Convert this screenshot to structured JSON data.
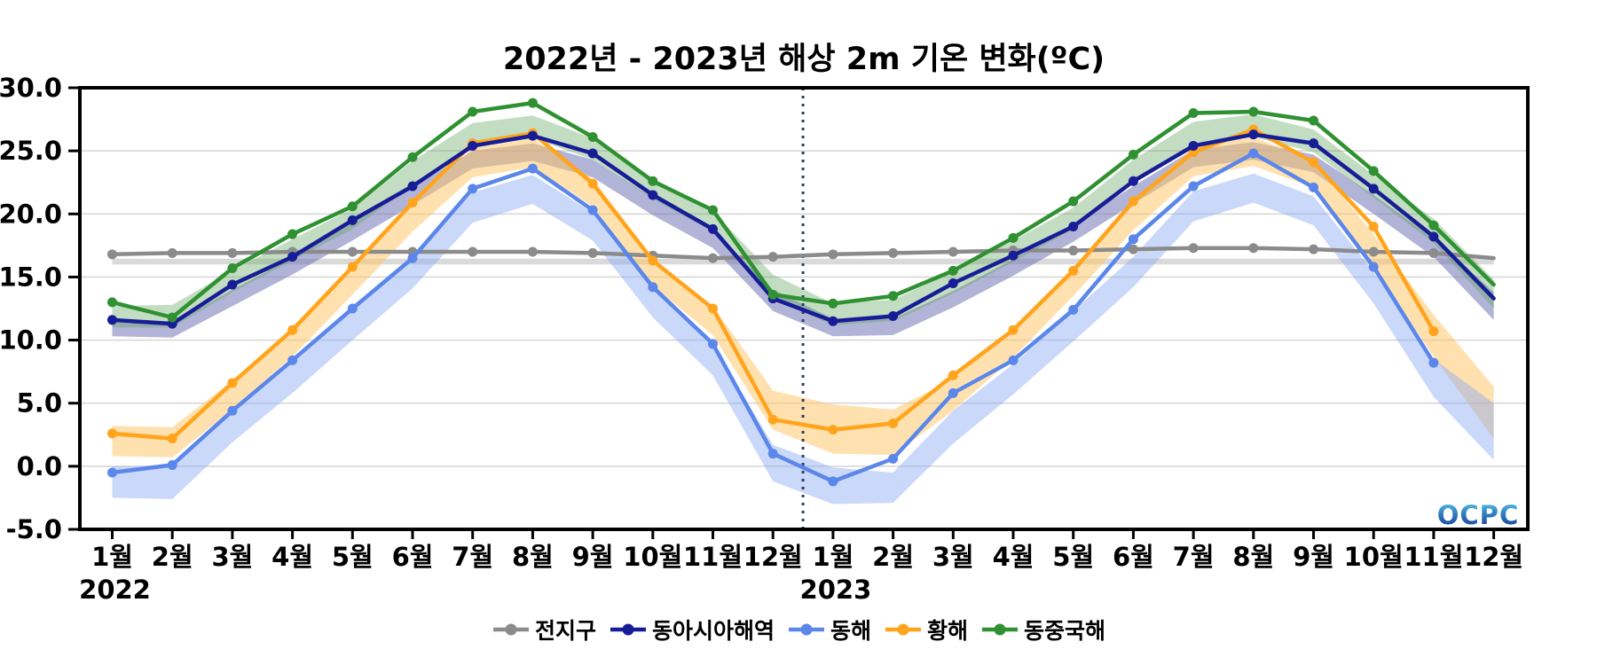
{
  "title": "2022년 - 2023년 해상 2m 기온 변화(ºC)",
  "watermark": "OCPC",
  "axis": {
    "y_tick_labels": [
      "30.0",
      "25.0",
      "20.0",
      "15.0",
      "10.0",
      "5.0",
      "0.0",
      "-5.0"
    ],
    "y_min": -5,
    "y_max": 30,
    "y_step": 5,
    "months": [
      "1월",
      "2월",
      "3월",
      "4월",
      "5월",
      "6월",
      "7월",
      "8월",
      "9월",
      "10월",
      "11월",
      "12월",
      "1월",
      "2월",
      "3월",
      "4월",
      "5월",
      "6월",
      "7월",
      "8월",
      "9월",
      "10월",
      "11월",
      "12월"
    ],
    "year_labels": [
      {
        "text": "2022",
        "month_index": 0
      },
      {
        "text": "2023",
        "month_index": 12
      }
    ],
    "divider_between": [
      11,
      12
    ]
  },
  "colors": {
    "grid": "#d8d8d8",
    "frame": "#000000",
    "divider": "#2c3e5d",
    "watermark_top": "#5ec9e6",
    "watermark_mid": "#2e7fc2",
    "watermark_bottom": "#16368f"
  },
  "chart_data": {
    "type": "line",
    "title": "2022년 - 2023년 해상 2m 기온 변화(ºC)",
    "ylim": [
      -5,
      30
    ],
    "grid": true,
    "legend_position": "bottom",
    "x_years": [
      "2022",
      "2023"
    ],
    "categories": [
      "1월",
      "2월",
      "3월",
      "4월",
      "5월",
      "6월",
      "7월",
      "8월",
      "9월",
      "10월",
      "11월",
      "12월",
      "1월",
      "2월",
      "3월",
      "4월",
      "5월",
      "6월",
      "7월",
      "8월",
      "9월",
      "10월",
      "11월",
      "12월"
    ],
    "series": [
      {
        "key": "global",
        "name": "전지구",
        "color": "#8b8b8b",
        "band_color": "rgba(205,205,205,0.75)",
        "values": [
          16.8,
          16.9,
          16.9,
          17.0,
          17.0,
          17.0,
          17.0,
          17.0,
          16.9,
          16.7,
          16.5,
          16.6,
          16.8,
          16.9,
          17.0,
          17.1,
          17.1,
          17.2,
          17.3,
          17.3,
          17.2,
          17.0,
          16.9,
          16.5
        ],
        "band_lower": [
          16.0,
          16.0,
          16.0,
          16.0,
          16.0,
          16.0,
          16.0,
          16.0,
          16.0,
          16.0,
          16.0,
          16.0,
          16.0,
          16.0,
          16.0,
          16.0,
          16.0,
          16.0,
          16.0,
          16.0,
          16.0,
          16.0,
          16.0,
          16.0
        ],
        "band_upper": [
          16.45,
          16.45,
          16.45,
          16.45,
          16.45,
          16.45,
          16.45,
          16.45,
          16.45,
          16.45,
          16.45,
          16.45,
          16.45,
          16.45,
          16.45,
          16.45,
          16.45,
          16.45,
          16.45,
          16.45,
          16.45,
          16.45,
          16.45,
          16.45
        ]
      },
      {
        "key": "east-asia",
        "name": "동아시아해역",
        "color": "#171d96",
        "band_color": "rgba(115,118,182,0.55)",
        "values": [
          11.6,
          11.3,
          14.4,
          16.6,
          19.5,
          22.2,
          25.4,
          26.2,
          24.8,
          21.5,
          18.8,
          13.3,
          11.5,
          11.9,
          14.5,
          16.7,
          19.0,
          22.6,
          25.4,
          26.3,
          25.6,
          22.0,
          18.2,
          13.3
        ],
        "band_lower": [
          10.3,
          10.2,
          12.7,
          15.2,
          17.9,
          20.7,
          23.6,
          24.2,
          22.9,
          19.9,
          17.3,
          12.3,
          10.3,
          10.4,
          12.6,
          15.1,
          17.8,
          20.8,
          23.7,
          24.3,
          23.3,
          20.0,
          16.6,
          11.6
        ],
        "band_upper": [
          11.4,
          11.3,
          14.0,
          16.5,
          19.3,
          22.1,
          25.0,
          25.6,
          24.3,
          21.3,
          18.7,
          14.0,
          11.7,
          11.7,
          13.9,
          16.4,
          19.2,
          22.2,
          25.1,
          25.7,
          24.7,
          21.5,
          18.1,
          13.8
        ]
      },
      {
        "key": "east-sea",
        "name": "동해",
        "color": "#5b87ea",
        "band_color": "rgba(138,168,242,0.45)",
        "values": [
          -0.5,
          0.1,
          4.4,
          8.4,
          12.5,
          16.5,
          22.0,
          23.6,
          20.3,
          14.2,
          9.7,
          1.0,
          -1.2,
          0.6,
          5.8,
          8.4,
          12.4,
          18.0,
          22.2,
          24.8,
          22.1,
          15.8,
          8.2,
          null
        ],
        "band_lower": [
          -2.5,
          -2.6,
          1.9,
          5.8,
          10.0,
          14.1,
          19.3,
          20.8,
          17.9,
          11.8,
          7.2,
          -1.2,
          -3.0,
          -2.9,
          1.8,
          5.7,
          9.9,
          14.2,
          19.4,
          20.9,
          19.1,
          12.9,
          5.5,
          0.5
        ],
        "band_upper": [
          0.0,
          -0.1,
          4.3,
          8.2,
          12.4,
          16.5,
          21.7,
          23.1,
          20.1,
          14.1,
          9.7,
          1.7,
          -0.1,
          -0.5,
          4.4,
          8.1,
          12.3,
          16.6,
          21.8,
          23.2,
          21.4,
          15.4,
          8.5,
          5.0
        ]
      },
      {
        "key": "yellow-sea",
        "name": "황해",
        "color": "#ffa41c",
        "band_color": "rgba(255,196,95,0.5)",
        "values": [
          2.6,
          2.2,
          6.6,
          10.8,
          15.8,
          20.9,
          25.6,
          26.4,
          22.4,
          16.3,
          12.5,
          3.7,
          2.9,
          3.4,
          7.2,
          10.8,
          15.5,
          21.0,
          24.9,
          26.7,
          24.1,
          19.0,
          10.7,
          null
        ],
        "band_lower": [
          0.8,
          0.7,
          4.5,
          8.7,
          13.6,
          18.6,
          22.9,
          23.7,
          20.6,
          14.3,
          10.4,
          2.9,
          1.0,
          0.9,
          4.4,
          8.6,
          13.5,
          18.7,
          23.0,
          23.8,
          22.1,
          15.8,
          8.7,
          2.2
        ],
        "band_upper": [
          3.2,
          3.1,
          6.8,
          11.0,
          15.9,
          21.0,
          25.2,
          26.0,
          22.8,
          16.5,
          12.7,
          6.0,
          4.9,
          4.5,
          6.9,
          11.0,
          15.8,
          21.1,
          25.3,
          26.1,
          24.2,
          18.4,
          12.0,
          6.3
        ]
      },
      {
        "key": "east-china-sea",
        "name": "동중국해",
        "color": "#2f9132",
        "band_color": "rgba(96,165,94,0.38)",
        "values": [
          13.0,
          11.8,
          15.7,
          18.4,
          20.6,
          24.5,
          28.1,
          28.8,
          26.1,
          22.6,
          20.3,
          13.6,
          12.9,
          13.5,
          15.5,
          18.1,
          21.0,
          24.7,
          28.0,
          28.1,
          27.4,
          23.4,
          19.1,
          14.4
        ],
        "band_lower": [
          11.0,
          11.0,
          13.8,
          16.3,
          18.8,
          22.3,
          25.3,
          26.0,
          24.3,
          21.2,
          18.6,
          13.2,
          11.2,
          11.5,
          13.7,
          16.2,
          18.8,
          22.4,
          25.4,
          26.1,
          24.9,
          21.3,
          17.7,
          12.5
        ],
        "band_upper": [
          12.7,
          12.8,
          15.5,
          18.0,
          20.4,
          24.2,
          27.2,
          27.8,
          26.0,
          22.8,
          20.2,
          15.2,
          12.9,
          13.2,
          15.4,
          17.9,
          20.5,
          24.3,
          27.3,
          27.9,
          26.7,
          23.1,
          19.6,
          14.8
        ]
      }
    ]
  }
}
